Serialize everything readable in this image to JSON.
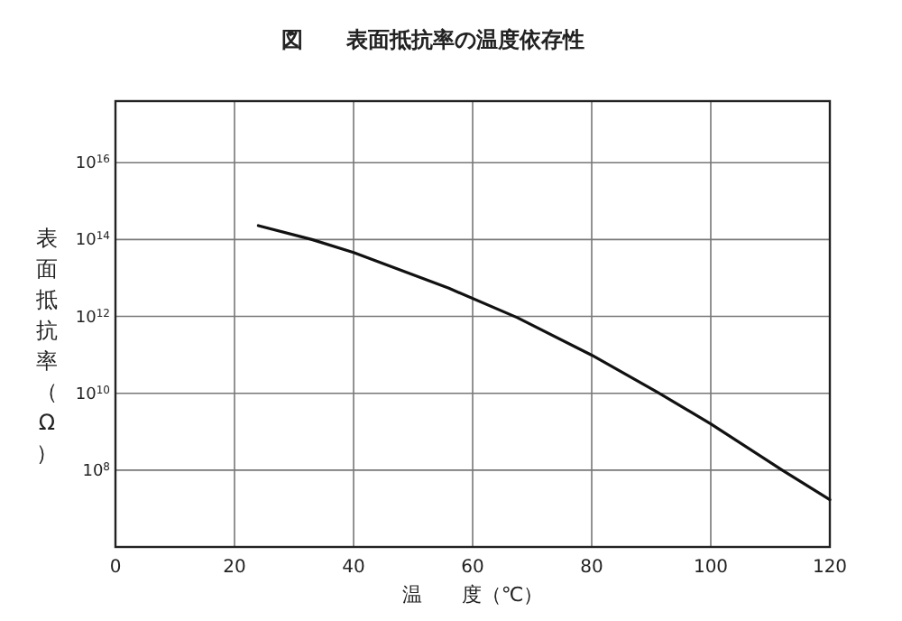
{
  "chart_data": {
    "type": "line",
    "title": "図　　表面抵抗率の温度依存性",
    "xlabel": "温　　度（℃）",
    "ylabel": "表面抵抗率（Ω）",
    "log": "y",
    "grid": true,
    "marker": "none",
    "line_style": "solid",
    "xlim": [
      0,
      120
    ],
    "xticks": [
      0,
      20,
      40,
      60,
      80,
      100,
      120
    ],
    "ylim": [
      1000000.0,
      4e+17
    ],
    "yticks": [
      {
        "value": 100000000.0,
        "label": "10$^{8}$"
      },
      {
        "value": 10000000000.0,
        "label": "10$^{10}$"
      },
      {
        "value": 1000000000000.0,
        "label": "10$^{12}$"
      },
      {
        "value": 100000000000000.0,
        "label": "10$^{14}$"
      },
      {
        "value": 1e+16,
        "label": "10$^{16}$"
      }
    ],
    "series": [
      {
        "color": "#111111",
        "x": [
          24,
          33,
          40,
          56,
          67.5,
          80,
          91,
          100,
          112,
          120
        ],
        "values": [
          230000000000000.0,
          100000000000000.0,
          46000000000000.0,
          5400000000000.0,
          930000000000.0,
          98000000000.0,
          10700000000.0,
          1600000000.0,
          100000000.0,
          17000000.0
        ]
      }
    ]
  }
}
